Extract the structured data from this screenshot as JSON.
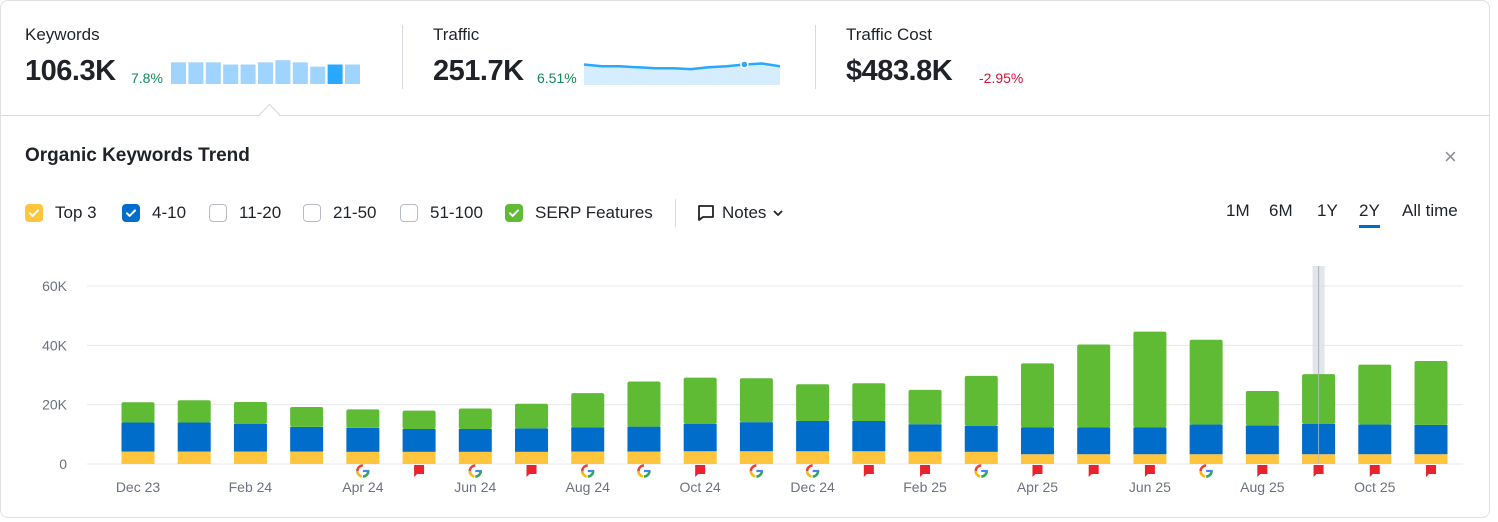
{
  "metrics": {
    "keywords": {
      "label": "Keywords",
      "value": "106.3K",
      "delta": "7.8%",
      "spark": [
        10,
        10,
        10,
        9,
        9,
        10,
        11,
        10,
        8,
        9,
        9
      ],
      "highlight_index": 9
    },
    "traffic": {
      "label": "Traffic",
      "value": "251.7K",
      "delta": "6.51%",
      "spark": [
        62,
        60,
        60,
        59,
        58,
        58,
        57,
        59,
        60,
        62,
        63,
        60
      ]
    },
    "traffic_cost": {
      "label": "Traffic Cost",
      "value": "$483.8K",
      "delta": "-2.95%"
    }
  },
  "panel": {
    "title": "Organic Keywords Trend",
    "close": "×"
  },
  "filters": [
    {
      "label": "Top 3",
      "checked": true,
      "color": "#ffc53d"
    },
    {
      "label": "4-10",
      "checked": true,
      "color": "#006dca"
    },
    {
      "label": "11-20",
      "checked": false,
      "color": "#b7bcc4"
    },
    {
      "label": "21-50",
      "checked": false,
      "color": "#b7bcc4"
    },
    {
      "label": "51-100",
      "checked": false,
      "color": "#b7bcc4"
    },
    {
      "label": "SERP Features",
      "checked": true,
      "color": "#5fba34"
    }
  ],
  "notes_label": "Notes",
  "ranges": [
    {
      "label": "1M",
      "active": false
    },
    {
      "label": "6M",
      "active": false
    },
    {
      "label": "1Y",
      "active": false
    },
    {
      "label": "2Y",
      "active": true
    },
    {
      "label": "All time",
      "active": false
    }
  ],
  "colors": {
    "top3": "#ffc53d",
    "pos4_10": "#006dca",
    "serp": "#5fba34",
    "accent": "#006dca",
    "grid": "#e6e8eb",
    "axis_text": "#6c7280",
    "note": "#e8232e"
  },
  "chart_data": {
    "type": "bar",
    "stacked": true,
    "title": "Organic Keywords Trend",
    "ylim": [
      0,
      60000
    ],
    "yticks": [
      0,
      20000,
      40000,
      60000
    ],
    "ytick_labels": [
      "0",
      "20K",
      "40K",
      "60K"
    ],
    "xtick_labels": [
      {
        "index": 0,
        "label": "Dec 23"
      },
      {
        "index": 2,
        "label": "Feb 24"
      },
      {
        "index": 4,
        "label": "Apr 24"
      },
      {
        "index": 6,
        "label": "Jun 24"
      },
      {
        "index": 8,
        "label": "Aug 24"
      },
      {
        "index": 10,
        "label": "Oct 24"
      },
      {
        "index": 12,
        "label": "Dec 24"
      },
      {
        "index": 14,
        "label": "Feb 25"
      },
      {
        "index": 16,
        "label": "Apr 25"
      },
      {
        "index": 18,
        "label": "Jun 25"
      },
      {
        "index": 20,
        "label": "Aug 25"
      },
      {
        "index": 22,
        "label": "Oct 25"
      }
    ],
    "categories": [
      "Dec 23",
      "Jan 24",
      "Feb 24",
      "Mar 24",
      "Apr 24",
      "May 24",
      "Jun 24",
      "Jul 24",
      "Aug 24",
      "Sep 24",
      "Oct 24",
      "Nov 24",
      "Dec 24",
      "Jan 25",
      "Feb 25",
      "Mar 25",
      "Apr 25",
      "May 25",
      "Jun 25",
      "Jul 25",
      "Aug 25",
      "Sep 25",
      "Oct 25",
      "Nov 25"
    ],
    "series": [
      {
        "name": "Top 3",
        "values": [
          4200,
          4200,
          4200,
          4200,
          4100,
          4100,
          4100,
          4100,
          4200,
          4200,
          4300,
          4300,
          4300,
          4300,
          4200,
          4100,
          3300,
          3300,
          3300,
          3300,
          3300,
          3300,
          3300,
          3300
        ]
      },
      {
        "name": "4-10",
        "values": [
          9800,
          9800,
          9300,
          8300,
          8100,
          7700,
          7700,
          7900,
          8200,
          8400,
          9200,
          9800,
          10200,
          10200,
          9200,
          8700,
          9000,
          9000,
          9000,
          10000,
          9700,
          10200,
          10000,
          9900
        ]
      },
      {
        "name": "SERP Features",
        "values": [
          6800,
          7500,
          7400,
          6700,
          6200,
          6200,
          6900,
          8300,
          11500,
          15200,
          15600,
          14800,
          12400,
          12700,
          11600,
          16900,
          21600,
          28000,
          32300,
          28600,
          11600,
          16800,
          20200,
          21500
        ]
      }
    ],
    "events": [
      "",
      "",
      "",
      "",
      "google",
      "note",
      "google",
      "note",
      "google",
      "google",
      "note",
      "google",
      "google",
      "note",
      "note",
      "google",
      "note",
      "note",
      "note",
      "google",
      "note",
      "note",
      "note",
      "note"
    ],
    "highlight_index": 21
  }
}
